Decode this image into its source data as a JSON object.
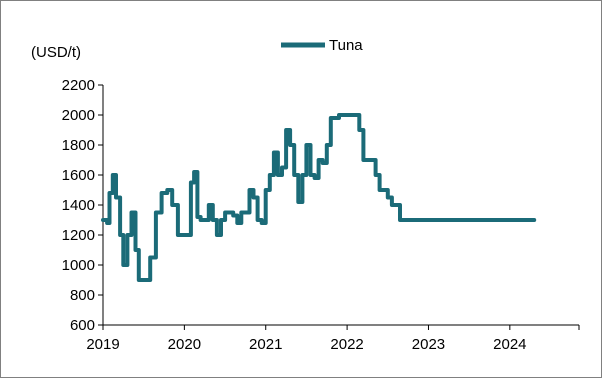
{
  "chart_data": {
    "type": "line",
    "title": "",
    "xlabel": "",
    "ylabel": "(USD/t)",
    "ylim": [
      600,
      2200
    ],
    "yticks": [
      600,
      800,
      1000,
      1200,
      1400,
      1600,
      1800,
      2000,
      2200
    ],
    "xlim": [
      2019.0,
      2024.85
    ],
    "xticks": [
      {
        "value": 2019,
        "label": "2019"
      },
      {
        "value": 2020,
        "label": "2020"
      },
      {
        "value": 2021,
        "label": "2021"
      },
      {
        "value": 2022,
        "label": "2022"
      },
      {
        "value": 2023,
        "label": "2023"
      },
      {
        "value": 2024,
        "label": "2024"
      }
    ],
    "grid": false,
    "legend": {
      "position": "top-center",
      "entries": [
        "Tuna"
      ]
    },
    "series": [
      {
        "name": "Tuna",
        "color": "#1b6b78",
        "x": [
          2019.0,
          2019.05,
          2019.08,
          2019.12,
          2019.16,
          2019.21,
          2019.25,
          2019.3,
          2019.35,
          2019.4,
          2019.44,
          2019.48,
          2019.53,
          2019.58,
          2019.65,
          2019.72,
          2019.79,
          2019.85,
          2019.92,
          2019.96,
          2020.03,
          2020.08,
          2020.12,
          2020.16,
          2020.2,
          2020.25,
          2020.3,
          2020.35,
          2020.4,
          2020.45,
          2020.5,
          2020.55,
          2020.6,
          2020.65,
          2020.7,
          2020.75,
          2020.8,
          2020.85,
          2020.9,
          2020.95,
          2021.0,
          2021.05,
          2021.1,
          2021.15,
          2021.2,
          2021.25,
          2021.3,
          2021.35,
          2021.4,
          2021.45,
          2021.5,
          2021.55,
          2021.6,
          2021.65,
          2021.7,
          2021.75,
          2021.8,
          2021.85,
          2021.9,
          2021.95,
          2022.0,
          2022.05,
          2022.1,
          2022.15,
          2022.2,
          2022.25,
          2022.3,
          2022.35,
          2022.4,
          2022.45,
          2022.5,
          2022.55,
          2022.6,
          2022.65,
          2022.7,
          2022.75,
          2022.8,
          2022.85,
          2022.9,
          2022.95,
          2023.0,
          2023.05,
          2023.1,
          2023.15,
          2023.2,
          2023.25,
          2023.3,
          2023.35,
          2023.4,
          2023.45,
          2023.5,
          2023.55,
          2023.6,
          2023.65,
          2023.7,
          2023.75,
          2023.8,
          2023.85,
          2023.9,
          2023.95,
          2024.0,
          2024.05,
          2024.1,
          2024.15,
          2024.2,
          2024.25,
          2024.3
        ],
        "y": [
          1300,
          1280,
          1480,
          1600,
          1450,
          1200,
          1000,
          1200,
          1350,
          1100,
          900,
          900,
          900,
          1050,
          1350,
          1480,
          1500,
          1400,
          1200,
          1200,
          1200,
          1550,
          1620,
          1320,
          1300,
          1300,
          1400,
          1300,
          1200,
          1300,
          1350,
          1350,
          1330,
          1280,
          1350,
          1350,
          1500,
          1450,
          1300,
          1280,
          1500,
          1600,
          1750,
          1600,
          1650,
          1900,
          1800,
          1600,
          1420,
          1600,
          1800,
          1600,
          1580,
          1700,
          1680,
          1800,
          1980,
          1980,
          2000,
          2000,
          2000,
          2000,
          2000,
          1900,
          1700,
          1700,
          1700,
          1600,
          1500,
          1500,
          1450,
          1400,
          1400,
          1300,
          1300,
          1300,
          1300,
          1300,
          1300,
          1300,
          1300,
          1300,
          1300,
          1300,
          1300,
          1300,
          1300,
          1300,
          1300,
          1300,
          1300,
          1300,
          1300,
          1300,
          1300,
          1300,
          1300,
          1300,
          1300,
          1300,
          1300,
          1300,
          1300,
          1300,
          1300,
          1300,
          1300
        ]
      }
    ]
  }
}
